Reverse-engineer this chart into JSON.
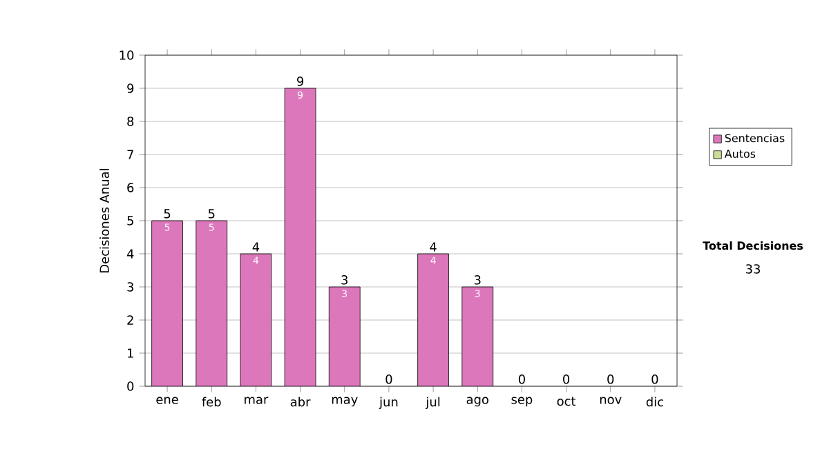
{
  "chart_data": {
    "type": "bar",
    "stacked": true,
    "ylabel": "Decisiones Anual",
    "categories": [
      "ene",
      "feb",
      "mar",
      "abr",
      "may",
      "jun",
      "jul",
      "ago",
      "sep",
      "oct",
      "nov",
      "dic"
    ],
    "series": [
      {
        "name": "Sentencias",
        "color": "#dd77bb",
        "values": [
          5,
          5,
          4,
          9,
          3,
          0,
          4,
          3,
          0,
          0,
          0,
          0
        ],
        "value_labels": [
          "5",
          "5",
          "4",
          "9",
          "3",
          null,
          "4",
          "3",
          null,
          null,
          null,
          null
        ]
      },
      {
        "name": "Autos",
        "color": "#ccdd99",
        "values": [
          0,
          0,
          0,
          0,
          0,
          0,
          0,
          0,
          0,
          0,
          0,
          0
        ]
      }
    ],
    "totals": [
      "5",
      "5",
      "4",
      "9",
      "3",
      "0",
      "4",
      "3",
      "0",
      "0",
      "0",
      "0"
    ],
    "ylim": [
      0,
      10
    ],
    "yticks": [
      0,
      1,
      2,
      3,
      4,
      5,
      6,
      7,
      8,
      9,
      10
    ],
    "grid": "y",
    "legend": "right",
    "annotations": [
      "Total Decisiones",
      "33"
    ]
  }
}
